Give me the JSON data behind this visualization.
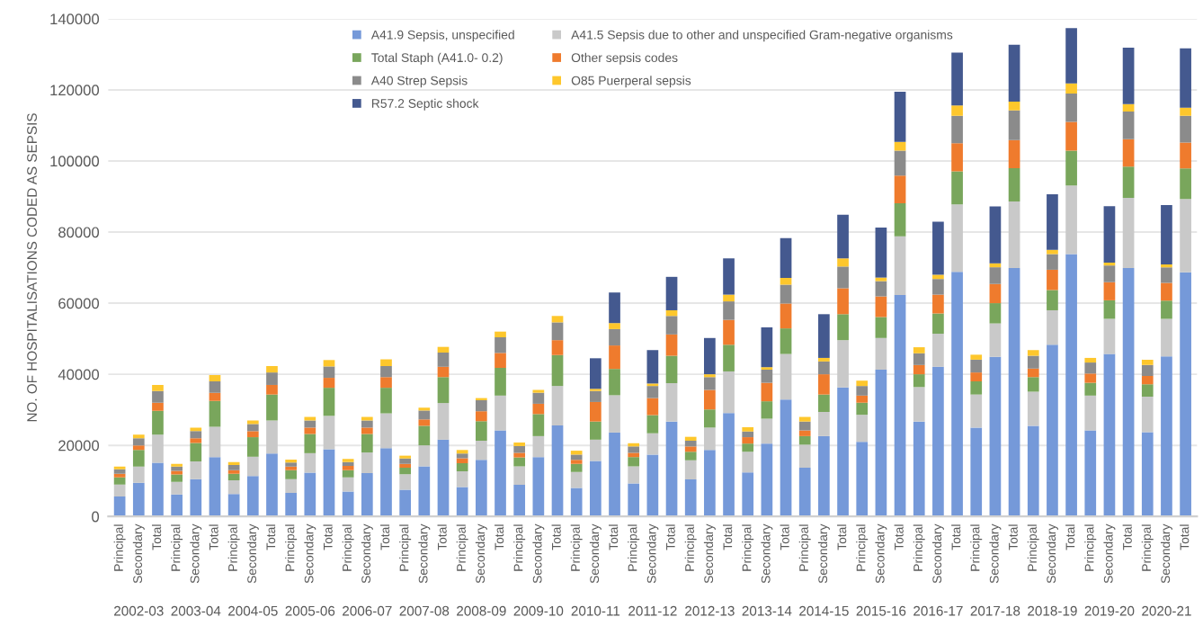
{
  "chart_data": {
    "type": "bar",
    "stacked": true,
    "ylabel": "NO. OF HOSPITALISATIONS CODED AS SEPSIS",
    "categories": [
      "Principal",
      "Secondary",
      "Total",
      "Principal",
      "Secondary",
      "Total",
      "Principal",
      "Secondary",
      "Total",
      "Principal",
      "Secondary",
      "Total",
      "Principal",
      "Secondary",
      "Total",
      "Principal",
      "Secondary",
      "Total",
      "Principal",
      "Secondary",
      "Total",
      "Principal",
      "Secondary",
      "Total",
      "Principal",
      "Secondary",
      "Total",
      "Principal",
      "Secondary",
      "Total",
      "Principal",
      "Secondary",
      "Total",
      "Principal",
      "Secondary",
      "Total",
      "Principal",
      "Secondary",
      "Total",
      "Principal",
      "Secondary",
      "Total",
      "Principal",
      "Secondary",
      "Total",
      "Principal",
      "Secondary",
      "Total",
      "Principal",
      "Secondary",
      "Total",
      "Principal",
      "Secondary",
      "Total",
      "Principal",
      "Secondary",
      "Total"
    ],
    "annotations": [
      "2002-03",
      "2003-04",
      "2004-05",
      "2005-06",
      "2006-07",
      "2007-08",
      "2008-09",
      "2009-10",
      "2010-11",
      "2011-12",
      "2012-13",
      "2013-14",
      "2014-15",
      "2015-16",
      "2016-17",
      "2017-18",
      "2018-19",
      "2019-20",
      "2020-21"
    ],
    "series": [
      {
        "name": "A41.9 Sepsis, unspecified",
        "color": "#7599d9",
        "values": [
          5600,
          9500,
          15100,
          6200,
          10500,
          16700,
          6300,
          11400,
          17700,
          6600,
          12300,
          18900,
          7000,
          12200,
          19200,
          7500,
          14100,
          21600,
          8300,
          15900,
          24200,
          8900,
          16700,
          25600,
          8000,
          15600,
          23600,
          9300,
          17400,
          26700,
          10400,
          18700,
          29100,
          12400,
          20500,
          32900,
          13700,
          22600,
          36300,
          21000,
          41300,
          62300,
          26700,
          42100,
          68800,
          25000,
          44900,
          69900,
          25500,
          48300,
          73800,
          24200,
          45700,
          69900,
          23700,
          45000,
          68700
        ]
      },
      {
        "name": "A41.5 Sepsis due to other and unspecified Gram-negative organisms",
        "color": "#c9c9c9",
        "values": [
          3400,
          4500,
          7900,
          3500,
          5000,
          8500,
          3900,
          5400,
          9300,
          3900,
          5500,
          9400,
          4000,
          5800,
          9800,
          4400,
          5900,
          10300,
          4400,
          5400,
          9800,
          5200,
          5900,
          11100,
          4500,
          6000,
          10500,
          4800,
          6000,
          10800,
          5400,
          6300,
          11700,
          5800,
          7000,
          12800,
          6500,
          6800,
          13300,
          7600,
          8900,
          16500,
          9700,
          9300,
          19000,
          9300,
          9400,
          18700,
          9600,
          9700,
          19300,
          9800,
          9900,
          19700,
          10000,
          10600,
          20600
        ]
      },
      {
        "name": "Total Staph (A41.0- 0.2)",
        "color": "#79a65c",
        "values": [
          2000,
          4700,
          6700,
          2100,
          5200,
          7300,
          1800,
          5500,
          7300,
          2500,
          5400,
          7900,
          2000,
          5200,
          7200,
          1800,
          5500,
          7300,
          2300,
          5500,
          7800,
          2500,
          6200,
          8700,
          2300,
          5100,
          7400,
          2600,
          5100,
          7700,
          2400,
          5100,
          7500,
          2300,
          4900,
          7200,
          2400,
          4900,
          7300,
          3400,
          5900,
          9300,
          3600,
          5700,
          9300,
          3700,
          5700,
          9400,
          4100,
          5700,
          9800,
          3600,
          5200,
          8800,
          3500,
          5100,
          8600
        ]
      },
      {
        "name": "Other sepsis codes",
        "color": "#ef7b2d",
        "values": [
          1000,
          1300,
          2300,
          1000,
          1300,
          2300,
          1000,
          1700,
          2700,
          1000,
          1800,
          2800,
          1200,
          1800,
          3000,
          1100,
          1800,
          2900,
          1400,
          2800,
          4200,
          1300,
          2900,
          4200,
          1100,
          5500,
          6600,
          1200,
          4800,
          6000,
          1500,
          5500,
          7000,
          1800,
          5200,
          7000,
          1600,
          5700,
          7300,
          2000,
          5800,
          7800,
          2600,
          5300,
          7900,
          2500,
          5400,
          7900,
          2400,
          5700,
          8100,
          2600,
          5100,
          7700,
          2300,
          5000,
          7300
        ]
      },
      {
        "name": "A40 Strep Sepsis",
        "color": "#8b8b8b",
        "values": [
          1300,
          2000,
          3300,
          1200,
          2000,
          3200,
          1500,
          2000,
          3500,
          1200,
          2000,
          3200,
          1100,
          2000,
          3100,
          1500,
          2500,
          4000,
          1300,
          3100,
          4400,
          1900,
          3100,
          5000,
          1500,
          3100,
          4600,
          1800,
          3400,
          5200,
          1600,
          3600,
          5200,
          1600,
          3700,
          5300,
          2500,
          3600,
          6100,
          2700,
          4300,
          7000,
          3300,
          4400,
          7700,
          3600,
          4700,
          8300,
          3600,
          4400,
          8000,
          3100,
          4700,
          7800,
          3100,
          4400,
          7500
        ]
      },
      {
        "name": "O85 Puerperal sepsis",
        "color": "#fec72c",
        "values": [
          700,
          1000,
          1700,
          800,
          1000,
          1800,
          800,
          1000,
          1800,
          800,
          1000,
          1800,
          900,
          1000,
          1900,
          800,
          800,
          1600,
          1000,
          600,
          1600,
          1000,
          800,
          1800,
          1100,
          600,
          1700,
          900,
          700,
          1600,
          1100,
          800,
          1900,
          1200,
          700,
          1900,
          1300,
          1000,
          2300,
          1500,
          1000,
          2500,
          1700,
          1200,
          2900,
          1400,
          1100,
          2500,
          1600,
          1200,
          2800,
          1300,
          800,
          2100,
          1500,
          800,
          2300
        ]
      },
      {
        "name": "R57.2 Septic shock",
        "color": "#44598f",
        "values": [
          null,
          null,
          null,
          null,
          null,
          null,
          null,
          null,
          null,
          null,
          null,
          null,
          null,
          null,
          null,
          null,
          null,
          null,
          null,
          null,
          null,
          null,
          null,
          null,
          null,
          8600,
          8600,
          null,
          9400,
          9400,
          null,
          10200,
          10200,
          null,
          11200,
          11200,
          null,
          12300,
          12300,
          null,
          14100,
          14100,
          null,
          14900,
          14900,
          null,
          16000,
          16000,
          null,
          15600,
          15600,
          null,
          15900,
          15900,
          null,
          16700,
          16700
        ]
      }
    ],
    "ylim": [
      0,
      140000
    ],
    "yticks": [
      0,
      20000,
      40000,
      60000,
      80000,
      100000,
      120000,
      140000
    ],
    "grid": "y",
    "legend": "top"
  }
}
